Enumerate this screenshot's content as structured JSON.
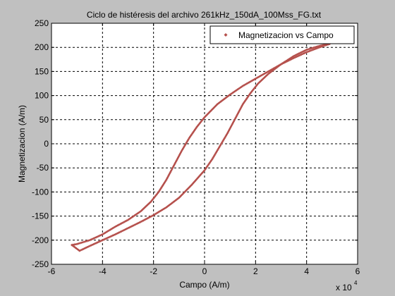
{
  "chart_data": {
    "type": "scatter",
    "title": "Ciclo de histéresis del archivo 261kHz_150dA_100Mss_FG.txt",
    "xlabel": "Campo (A/m)",
    "ylabel": "Magnetizacion (A/m)",
    "x_multiplier_label": "x 10",
    "x_multiplier_exponent": "4",
    "xlim": [
      -6,
      6
    ],
    "ylim": [
      -250,
      250
    ],
    "xticks": [
      -6,
      -4,
      -2,
      0,
      2,
      4,
      6
    ],
    "yticks": [
      -250,
      -200,
      -150,
      -100,
      -50,
      0,
      50,
      100,
      150,
      200,
      250
    ],
    "xtick_labels": [
      "-6",
      "-4",
      "-2",
      "0",
      "2",
      "4",
      "6"
    ],
    "ytick_labels": [
      "-250",
      "-200",
      "-150",
      "-100",
      "-50",
      "0",
      "50",
      "100",
      "150",
      "200",
      "250"
    ],
    "grid": true,
    "legend_position": "top-right",
    "series": [
      {
        "name": "Magnetizacion vs Campo",
        "color": "#b5504c",
        "marker": "diamond",
        "upper_branch": [
          [
            4.9,
            207
          ],
          [
            4.5,
            200
          ],
          [
            4.0,
            190
          ],
          [
            3.5,
            178
          ],
          [
            3.0,
            165
          ],
          [
            2.5,
            150
          ],
          [
            2.0,
            135
          ],
          [
            1.5,
            120
          ],
          [
            1.0,
            102
          ],
          [
            0.5,
            82
          ],
          [
            0.0,
            55
          ],
          [
            -0.3,
            35
          ],
          [
            -0.6,
            12
          ],
          [
            -0.9,
            -15
          ],
          [
            -1.2,
            -45
          ],
          [
            -1.5,
            -75
          ],
          [
            -1.8,
            -100
          ],
          [
            -2.1,
            -120
          ],
          [
            -2.5,
            -140
          ],
          [
            -3.0,
            -158
          ],
          [
            -3.5,
            -172
          ],
          [
            -4.0,
            -188
          ],
          [
            -4.5,
            -200
          ],
          [
            -5.0,
            -208
          ],
          [
            -5.2,
            -210
          ]
        ],
        "lower_branch": [
          [
            -5.2,
            -210
          ],
          [
            -4.9,
            -222
          ],
          [
            -4.5,
            -212
          ],
          [
            -4.0,
            -200
          ],
          [
            -3.5,
            -188
          ],
          [
            -3.0,
            -175
          ],
          [
            -2.5,
            -162
          ],
          [
            -2.0,
            -148
          ],
          [
            -1.5,
            -132
          ],
          [
            -1.0,
            -112
          ],
          [
            -0.5,
            -85
          ],
          [
            0.0,
            -55
          ],
          [
            0.3,
            -32
          ],
          [
            0.6,
            -5
          ],
          [
            0.9,
            22
          ],
          [
            1.2,
            52
          ],
          [
            1.5,
            82
          ],
          [
            1.8,
            105
          ],
          [
            2.1,
            125
          ],
          [
            2.5,
            145
          ],
          [
            3.0,
            165
          ],
          [
            3.5,
            182
          ],
          [
            4.0,
            195
          ],
          [
            4.5,
            203
          ],
          [
            4.9,
            208
          ]
        ]
      }
    ]
  }
}
